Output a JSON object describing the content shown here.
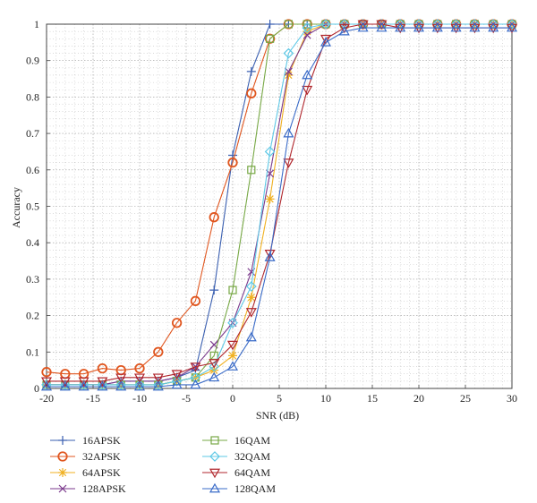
{
  "chart_data": {
    "type": "line",
    "title": "",
    "xlabel": "SNR (dB)",
    "ylabel": "Accuracy",
    "xlim": [
      -20,
      30
    ],
    "ylim": [
      0,
      1
    ],
    "xticks": [
      -20,
      -15,
      -10,
      -5,
      0,
      5,
      10,
      15,
      20,
      25,
      30
    ],
    "yticks": [
      0,
      0.1,
      0.2,
      0.3,
      0.4,
      0.5,
      0.6,
      0.7,
      0.8,
      0.9,
      1
    ],
    "grid": true,
    "grid_style": "dotted",
    "legend_position": "bottom",
    "x": [
      -20,
      -18,
      -16,
      -14,
      -12,
      -10,
      -8,
      -6,
      -4,
      -2,
      0,
      2,
      4,
      6,
      8,
      10,
      12,
      14,
      16,
      18,
      20,
      22,
      24,
      26,
      28,
      30
    ],
    "series": [
      {
        "name": "16APSK",
        "color": "#3a5fb0",
        "marker": "plus",
        "values": [
          0.01,
          0.01,
          0.01,
          0.01,
          0.02,
          0.02,
          0.02,
          0.03,
          0.05,
          0.27,
          0.64,
          0.87,
          1.0,
          1.0,
          1.0,
          1.0,
          1.0,
          1.0,
          1.0,
          1.0,
          1.0,
          1.0,
          1.0,
          1.0,
          1.0,
          1.0
        ]
      },
      {
        "name": "32APSK",
        "color": "#e0561f",
        "marker": "circle",
        "values": [
          0.045,
          0.04,
          0.04,
          0.055,
          0.05,
          0.055,
          0.1,
          0.18,
          0.24,
          0.47,
          0.62,
          0.81,
          0.96,
          1.0,
          1.0,
          1.0,
          1.0,
          1.0,
          1.0,
          1.0,
          1.0,
          1.0,
          1.0,
          1.0,
          1.0,
          1.0
        ]
      },
      {
        "name": "64APSK",
        "color": "#f0b020",
        "marker": "star",
        "values": [
          0.01,
          0.01,
          0.01,
          0.01,
          0.01,
          0.01,
          0.01,
          0.02,
          0.03,
          0.05,
          0.09,
          0.25,
          0.52,
          0.86,
          0.98,
          1.0,
          1.0,
          1.0,
          1.0,
          1.0,
          1.0,
          1.0,
          1.0,
          1.0,
          1.0,
          1.0
        ]
      },
      {
        "name": "128APSK",
        "color": "#7b3a8c",
        "marker": "x",
        "values": [
          0.01,
          0.01,
          0.01,
          0.01,
          0.02,
          0.02,
          0.02,
          0.03,
          0.06,
          0.12,
          0.18,
          0.32,
          0.59,
          0.87,
          0.97,
          1.0,
          1.0,
          1.0,
          1.0,
          1.0,
          1.0,
          1.0,
          1.0,
          1.0,
          1.0,
          1.0
        ]
      },
      {
        "name": "16QAM",
        "color": "#77a845",
        "marker": "square",
        "values": [
          0.01,
          0.01,
          0.01,
          0.01,
          0.01,
          0.01,
          0.01,
          0.02,
          0.03,
          0.09,
          0.27,
          0.6,
          0.96,
          1.0,
          1.0,
          1.0,
          1.0,
          1.0,
          1.0,
          1.0,
          1.0,
          1.0,
          1.0,
          1.0,
          1.0,
          1.0
        ]
      },
      {
        "name": "32QAM",
        "color": "#5ec8e6",
        "marker": "diamond",
        "values": [
          0.01,
          0.01,
          0.01,
          0.01,
          0.01,
          0.01,
          0.01,
          0.02,
          0.03,
          0.06,
          0.18,
          0.28,
          0.65,
          0.92,
          0.99,
          1.0,
          1.0,
          1.0,
          1.0,
          1.0,
          1.0,
          1.0,
          1.0,
          1.0,
          1.0,
          1.0
        ]
      },
      {
        "name": "64QAM",
        "color": "#b0262c",
        "marker": "triangle-down",
        "values": [
          0.02,
          0.02,
          0.02,
          0.02,
          0.03,
          0.03,
          0.03,
          0.04,
          0.06,
          0.07,
          0.12,
          0.21,
          0.37,
          0.62,
          0.82,
          0.96,
          0.99,
          1.0,
          1.0,
          0.99,
          0.99,
          0.99,
          0.99,
          0.99,
          0.99,
          0.99
        ]
      },
      {
        "name": "128QAM",
        "color": "#3a6bc8",
        "marker": "triangle-up",
        "values": [
          0.005,
          0.005,
          0.005,
          0.005,
          0.005,
          0.005,
          0.005,
          0.01,
          0.01,
          0.03,
          0.06,
          0.14,
          0.36,
          0.7,
          0.86,
          0.95,
          0.98,
          0.99,
          0.99,
          0.99,
          0.99,
          0.99,
          0.99,
          0.99,
          0.99,
          0.99
        ]
      }
    ]
  }
}
